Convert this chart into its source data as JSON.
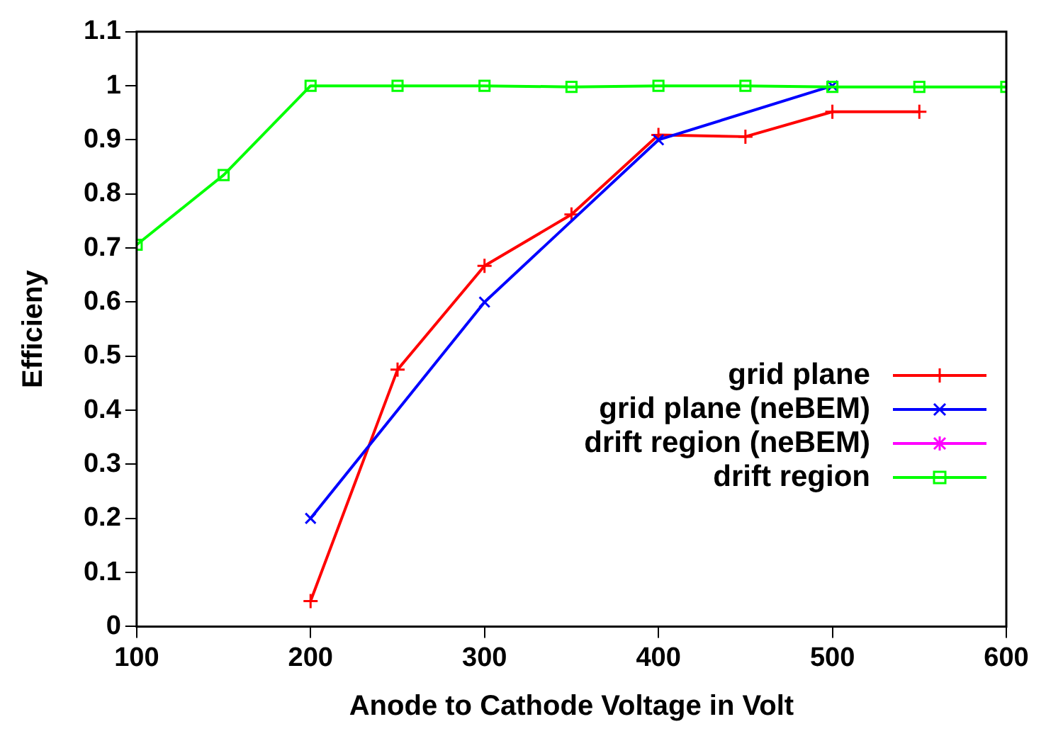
{
  "chart_data": {
    "type": "line",
    "xlabel": "Anode to Cathode Voltage in Volt",
    "ylabel": "Efficieny",
    "xlim": [
      100,
      600
    ],
    "xticks": [
      100,
      200,
      300,
      400,
      500,
      600
    ],
    "ylim": [
      0,
      1.1
    ],
    "yticks": [
      0,
      0.1,
      0.2,
      0.3,
      0.4,
      0.5,
      0.6,
      0.7,
      0.8,
      0.9,
      1,
      1.1
    ],
    "grid": false,
    "legend": "right",
    "series": [
      {
        "name": "grid plane",
        "color": "#ff0000",
        "marker": "cross",
        "x": [
          200,
          250,
          300,
          350,
          400,
          450,
          500,
          550
        ],
        "values": [
          0.047,
          0.475,
          0.667,
          0.762,
          0.909,
          0.906,
          0.952,
          0.952
        ]
      },
      {
        "name": "grid plane (neBEM)",
        "color": "#0000ff",
        "marker": "x",
        "x": [
          200,
          300,
          400,
          500
        ],
        "values": [
          0.2,
          0.6,
          0.9,
          1.0
        ]
      },
      {
        "name": "drift region (neBEM)",
        "color": "#ff00ff",
        "marker": "star"
      },
      {
        "name": "drift region",
        "color": "#00ff00",
        "marker": "square",
        "x": [
          100,
          150,
          200,
          250,
          300,
          350,
          400,
          450,
          500,
          550,
          600
        ],
        "values": [
          0.706,
          0.835,
          1,
          1,
          1,
          0.998,
          1,
          1,
          0.998,
          0.998,
          0.998
        ]
      }
    ]
  }
}
